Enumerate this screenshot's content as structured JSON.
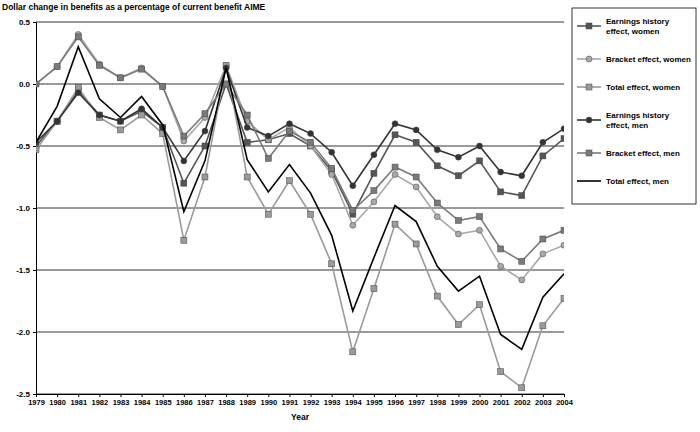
{
  "chart_data": {
    "type": "line",
    "y_label": "Dollar change in benefits as a percentage of current benefit AIME",
    "x_label": "Year",
    "x": [
      1979,
      1980,
      1981,
      1982,
      1983,
      1984,
      1985,
      1986,
      1987,
      1988,
      1989,
      1990,
      1991,
      1992,
      1993,
      1994,
      1995,
      1996,
      1997,
      1998,
      1999,
      2000,
      2001,
      2002,
      2003,
      2004
    ],
    "xlim": [
      1979,
      2004
    ],
    "xticks": [
      1979,
      1980,
      1981,
      1982,
      1983,
      1984,
      1985,
      1986,
      1987,
      1988,
      1989,
      1990,
      1991,
      1992,
      1993,
      1994,
      1995,
      1996,
      1997,
      1998,
      1999,
      2000,
      2001,
      2002,
      2003,
      2004
    ],
    "ylim": [
      -2.5,
      0.5
    ],
    "yticks": [
      -2.5,
      {
        "value": -2,
        "label": "-2.0"
      },
      -1.5,
      {
        "value": -1,
        "label": "-1.0"
      },
      -0.5,
      {
        "value": 0,
        "label": "0.0"
      },
      0.5
    ],
    "grid": true,
    "legend": "right",
    "series": [
      {
        "name": "Earnings history effect, women",
        "color": "#555555",
        "marker": "square",
        "values": [
          -0.5,
          -0.3,
          -0.05,
          -0.25,
          -0.3,
          -0.22,
          -0.35,
          -0.8,
          -0.5,
          0.0,
          -0.47,
          -0.45,
          -0.4,
          -0.5,
          -0.7,
          -1.05,
          -0.72,
          -0.41,
          -0.47,
          -0.66,
          -0.74,
          -0.62,
          -0.87,
          -0.9,
          -0.58,
          -0.44
        ]
      },
      {
        "name": "Bracket effect, women",
        "color": "#a8a8a8",
        "marker": "circle",
        "values": [
          0.0,
          0.14,
          0.4,
          0.16,
          0.05,
          0.13,
          -0.02,
          -0.46,
          -0.27,
          0.15,
          -0.3,
          -0.45,
          -0.35,
          -0.5,
          -0.73,
          -1.14,
          -0.95,
          -0.73,
          -0.83,
          -1.07,
          -1.21,
          -1.18,
          -1.47,
          -1.58,
          -1.37,
          -1.3
        ]
      },
      {
        "name": "Total effect, women",
        "color": "#9a9a9a",
        "marker": "square",
        "values": [
          -0.53,
          -0.3,
          -0.03,
          -0.27,
          -0.37,
          -0.25,
          -0.4,
          -1.26,
          -0.75,
          0.15,
          -0.75,
          -1.05,
          -0.78,
          -1.05,
          -1.45,
          -2.16,
          -1.65,
          -1.13,
          -1.29,
          -1.71,
          -1.94,
          -1.78,
          -2.32,
          -2.45,
          -1.95,
          -1.73
        ]
      },
      {
        "name": "Earnings history effect, men",
        "color": "#333333",
        "marker": "circle",
        "values": [
          -0.47,
          -0.3,
          -0.07,
          -0.25,
          -0.3,
          -0.2,
          -0.35,
          -0.62,
          -0.38,
          0.13,
          -0.35,
          -0.42,
          -0.32,
          -0.4,
          -0.55,
          -0.82,
          -0.57,
          -0.32,
          -0.37,
          -0.53,
          -0.59,
          -0.5,
          -0.71,
          -0.74,
          -0.47,
          -0.36
        ]
      },
      {
        "name": "Bracket effect, men",
        "color": "#7a7a7a",
        "marker": "square",
        "values": [
          0.0,
          0.14,
          0.38,
          0.15,
          0.05,
          0.12,
          -0.02,
          -0.42,
          -0.24,
          0.0,
          -0.25,
          -0.6,
          -0.38,
          -0.47,
          -0.68,
          -1.02,
          -0.86,
          -0.67,
          -0.75,
          -0.96,
          -1.1,
          -1.07,
          -1.33,
          -1.43,
          -1.25,
          -1.18
        ]
      },
      {
        "name": "Total effect, men",
        "color": "#000000",
        "marker": "none",
        "values": [
          -0.47,
          -0.18,
          0.3,
          -0.12,
          -0.27,
          -0.1,
          -0.33,
          -1.03,
          -0.62,
          0.13,
          -0.61,
          -0.87,
          -0.65,
          -0.88,
          -1.22,
          -1.83,
          -1.4,
          -0.98,
          -1.11,
          -1.47,
          -1.67,
          -1.55,
          -2.02,
          -2.14,
          -1.72,
          -1.53
        ]
      }
    ]
  }
}
